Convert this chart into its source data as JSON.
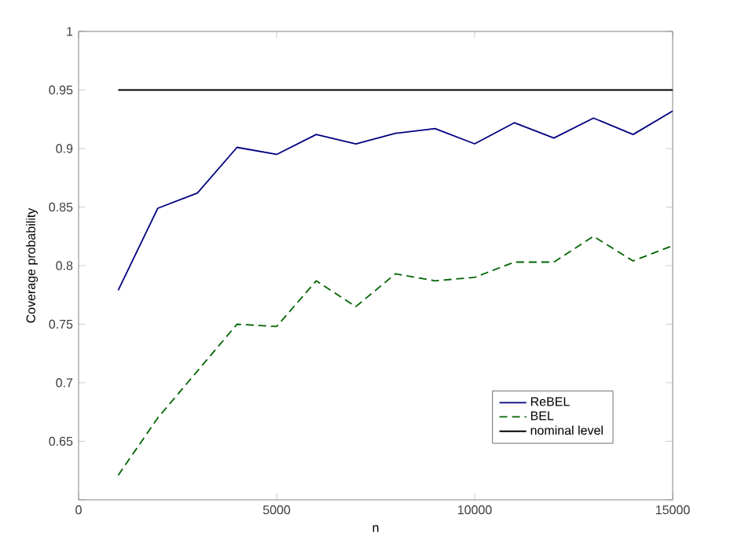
{
  "chart_data": {
    "type": "line",
    "xlabel": "n",
    "ylabel": "Coverage probability",
    "x": [
      1000,
      2000,
      3000,
      4000,
      5000,
      6000,
      7000,
      8000,
      9000,
      10000,
      11000,
      12000,
      13000,
      14000,
      15000
    ],
    "series": [
      {
        "name": "ReBEL",
        "color": "#000080",
        "line_style": "solid",
        "values": [
          0.779,
          0.849,
          0.862,
          0.901,
          0.895,
          0.912,
          0.904,
          0.913,
          0.917,
          0.904,
          0.922,
          0.909,
          0.926,
          0.912,
          0.932
        ]
      },
      {
        "name": "BEL",
        "color": "#006400",
        "line_style": "dashed",
        "values": [
          0.621,
          0.67,
          0.71,
          0.75,
          0.748,
          0.787,
          0.765,
          0.793,
          0.787,
          0.79,
          0.803,
          0.803,
          0.825,
          0.804,
          0.817
        ]
      },
      {
        "name": "nominal level",
        "color": "#000000",
        "line_style": "solid",
        "values": [
          0.95,
          0.95,
          0.95,
          0.95,
          0.95,
          0.95,
          0.95,
          0.95,
          0.95,
          0.95,
          0.95,
          0.95,
          0.95,
          0.95,
          0.95
        ]
      }
    ],
    "xlim": [
      0,
      15000
    ],
    "xticks": [
      0,
      5000,
      10000,
      15000
    ],
    "ylim": [
      0.6,
      1
    ],
    "yticks": [
      {
        "value": 0.6,
        "label": null
      },
      0.65,
      0.7,
      0.75,
      0.8,
      0.85,
      0.9,
      0.95,
      1
    ],
    "grid": false,
    "legend": "bottom right",
    "marker": "none"
  }
}
